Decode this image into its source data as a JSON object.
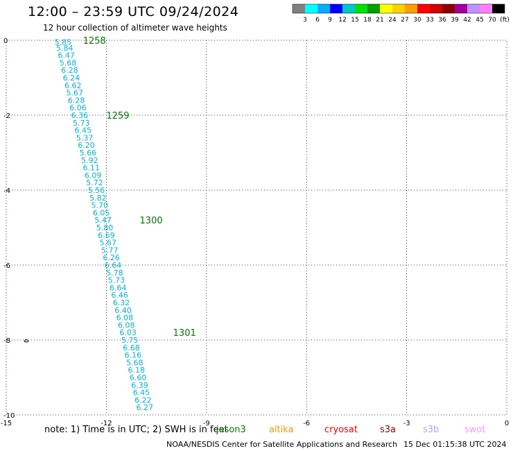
{
  "header": {
    "title": "12:00 – 23:59 UTC 09/24/2024",
    "subtitle": "12 hour collection of altimeter wave heights"
  },
  "colorbar": {
    "colors": [
      "#808080",
      "#00ffff",
      "#00b0ff",
      "#0000ff",
      "#00c8c8",
      "#00e000",
      "#00a000",
      "#ffff00",
      "#ffd000",
      "#ffa000",
      "#ff0000",
      "#d00000",
      "#900000",
      "#a000a0",
      "#c090ff",
      "#ff80ff",
      "#000000"
    ],
    "labels": [
      "3",
      "6",
      "9",
      "12",
      "15",
      "18",
      "21",
      "24",
      "27",
      "30",
      "33",
      "36",
      "39",
      "42",
      "45",
      "70",
      "(ft)"
    ]
  },
  "chart_data": {
    "type": "scatter",
    "xlim": [
      -15,
      0
    ],
    "ylim": [
      -10,
      0
    ],
    "x_ticks": [
      -15,
      -12,
      -9,
      -6,
      -3,
      0
    ],
    "y_ticks": [
      0,
      -2,
      -4,
      -6,
      -8,
      -10
    ],
    "grid": true,
    "track_points": [
      {
        "x": -13.3,
        "y": -0.05,
        "swh": "5.85"
      },
      {
        "x": -13.25,
        "y": -0.2,
        "swh": "5.84"
      },
      {
        "x": -13.2,
        "y": -0.4,
        "swh": "6.47"
      },
      {
        "x": -13.15,
        "y": -0.6,
        "swh": "5.68"
      },
      {
        "x": -13.1,
        "y": -0.8,
        "swh": "6.28"
      },
      {
        "x": -13.05,
        "y": -1.0,
        "swh": "6.24"
      },
      {
        "x": -13.0,
        "y": -1.2,
        "swh": "6.62"
      },
      {
        "x": -12.95,
        "y": -1.4,
        "swh": "5.67"
      },
      {
        "x": -12.9,
        "y": -1.6,
        "swh": "6.28"
      },
      {
        "x": -12.85,
        "y": -1.8,
        "swh": "6.06"
      },
      {
        "x": -12.8,
        "y": -2.0,
        "swh": "6.36"
      },
      {
        "x": -12.75,
        "y": -2.2,
        "swh": "5.73"
      },
      {
        "x": -12.7,
        "y": -2.4,
        "swh": "6.45"
      },
      {
        "x": -12.65,
        "y": -2.6,
        "swh": "5.37"
      },
      {
        "x": -12.6,
        "y": -2.8,
        "swh": "6.20"
      },
      {
        "x": -12.55,
        "y": -3.0,
        "swh": "5.66"
      },
      {
        "x": -12.5,
        "y": -3.2,
        "swh": "5.92"
      },
      {
        "x": -12.45,
        "y": -3.4,
        "swh": "6.11"
      },
      {
        "x": -12.4,
        "y": -3.6,
        "swh": "6.09"
      },
      {
        "x": -12.35,
        "y": -3.8,
        "swh": "5.72"
      },
      {
        "x": -12.3,
        "y": -4.0,
        "swh": "5.56"
      },
      {
        "x": -12.25,
        "y": -4.2,
        "swh": "5.82"
      },
      {
        "x": -12.2,
        "y": -4.4,
        "swh": "5.70"
      },
      {
        "x": -12.15,
        "y": -4.6,
        "swh": "6.05"
      },
      {
        "x": -12.1,
        "y": -4.8,
        "swh": "5.47"
      },
      {
        "x": -12.05,
        "y": -5.0,
        "swh": "5.80"
      },
      {
        "x": -12.0,
        "y": -5.2,
        "swh": "6.69"
      },
      {
        "x": -11.95,
        "y": -5.4,
        "swh": "5.67"
      },
      {
        "x": -11.9,
        "y": -5.6,
        "swh": "5.77"
      },
      {
        "x": -11.85,
        "y": -5.8,
        "swh": "6.26"
      },
      {
        "x": -11.8,
        "y": -6.0,
        "swh": "6.64"
      },
      {
        "x": -11.75,
        "y": -6.2,
        "swh": "5.78"
      },
      {
        "x": -11.7,
        "y": -6.4,
        "swh": "5.73"
      },
      {
        "x": -11.65,
        "y": -6.6,
        "swh": "6.64"
      },
      {
        "x": -11.6,
        "y": -6.8,
        "swh": "6.46"
      },
      {
        "x": -11.55,
        "y": -7.0,
        "swh": "6.32"
      },
      {
        "x": -11.5,
        "y": -7.2,
        "swh": "6.40"
      },
      {
        "x": -11.45,
        "y": -7.4,
        "swh": "6.08"
      },
      {
        "x": -11.4,
        "y": -7.6,
        "swh": "6.08"
      },
      {
        "x": -11.35,
        "y": -7.8,
        "swh": "6.03"
      },
      {
        "x": -11.3,
        "y": -8.0,
        "swh": "5.75"
      },
      {
        "x": -11.25,
        "y": -8.2,
        "swh": "6.68"
      },
      {
        "x": -11.2,
        "y": -8.4,
        "swh": "6.16"
      },
      {
        "x": -11.15,
        "y": -8.6,
        "swh": "5.68"
      },
      {
        "x": -11.1,
        "y": -8.8,
        "swh": "6.18"
      },
      {
        "x": -11.05,
        "y": -9.0,
        "swh": "6.60"
      },
      {
        "x": -11.0,
        "y": -9.2,
        "swh": "6.39"
      },
      {
        "x": -10.95,
        "y": -9.4,
        "swh": "6.45"
      },
      {
        "x": -10.9,
        "y": -9.6,
        "swh": "6.22"
      },
      {
        "x": -10.85,
        "y": -9.8,
        "swh": "6.27"
      }
    ],
    "time_labels": [
      {
        "x": -12.7,
        "y": 0.0,
        "text": "1258"
      },
      {
        "x": -12.0,
        "y": -2.0,
        "text": "1259"
      },
      {
        "x": -11.0,
        "y": -4.8,
        "text": "1300"
      },
      {
        "x": -10.0,
        "y": -7.8,
        "text": "1301"
      }
    ],
    "coast_marker": {
      "x": -14.4,
      "y": -8.0
    }
  },
  "footer": {
    "note": "note:  1) Time is in UTC; 2) SWH is in feet",
    "satellites": [
      {
        "name": "jason3",
        "color": "#008000"
      },
      {
        "name": "altika",
        "color": "#ff9900"
      },
      {
        "name": "cryosat",
        "color": "#ff0000"
      },
      {
        "name": "s3a",
        "color": "#990000"
      },
      {
        "name": "s3b",
        "color": "#b0a0ff"
      },
      {
        "name": "swot",
        "color": "#ff99ff"
      }
    ],
    "org": "NOAA/NESDIS Center for Satellite Applications and Research",
    "timestamp": "15 Dec 01:15:38 UTC 2024"
  }
}
